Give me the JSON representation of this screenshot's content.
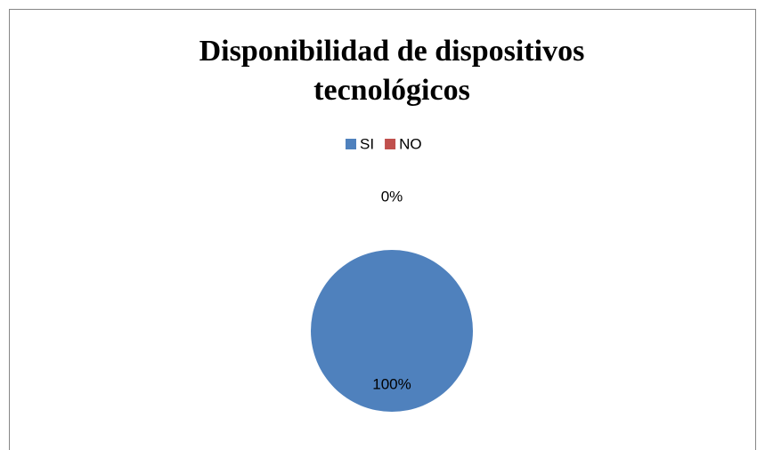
{
  "chart_data": {
    "type": "pie",
    "title": "Disponibilidad de dispositivos tecnológicos",
    "categories": [
      "SI",
      "NO"
    ],
    "values": [
      100,
      0
    ],
    "value_labels": [
      "100%",
      "0%"
    ],
    "colors": [
      "#4f81bd",
      "#c0504d"
    ],
    "legend": "top"
  }
}
